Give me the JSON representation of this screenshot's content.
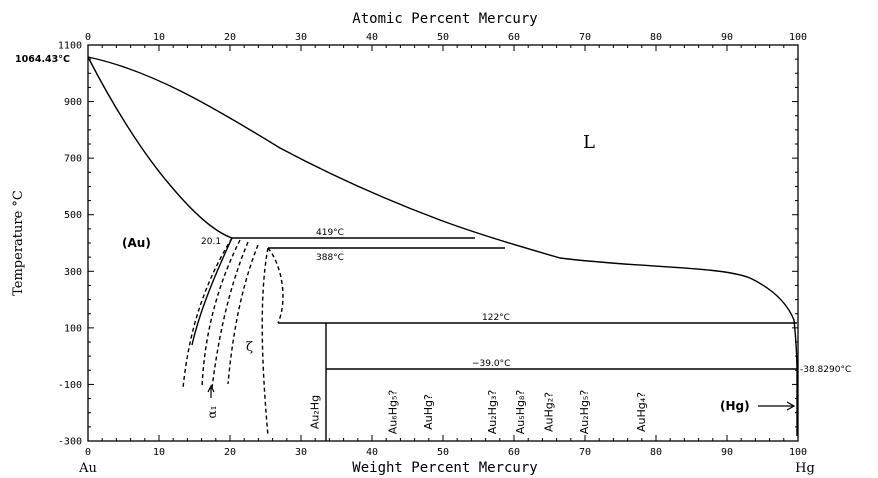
{
  "diagram": {
    "top_axis_label": "Atomic Percent Mercury",
    "bottom_axis_label": "Weight Percent Mercury",
    "y_axis_label": "Temperature °C",
    "left_element": "Au",
    "right_element": "Hg",
    "top_ticks": [
      "0",
      "10",
      "20",
      "30",
      "40",
      "50",
      "60",
      "70",
      "80",
      "90",
      "100"
    ],
    "bottom_ticks": [
      "0",
      "10",
      "20",
      "30",
      "40",
      "50",
      "60",
      "70",
      "80",
      "90",
      "100"
    ],
    "y_ticks": [
      "1100",
      "900",
      "700",
      "500",
      "300",
      "100",
      "-100",
      "-300"
    ],
    "temperatures": {
      "au_melt": "1064.43°C",
      "t419": "419°C",
      "t388": "388°C",
      "t122": "122°C",
      "tm39": "−39.0°C",
      "hg_melt": "-38.8290°C",
      "t20_1": "20.1"
    },
    "regions": {
      "liquid": "L",
      "au_solid": "(Au)",
      "hg_solid": "(Hg)",
      "zeta": "ζ",
      "alpha1": "α₁"
    },
    "compounds": [
      {
        "label": "Au₂Hg",
        "wt": 33
      },
      {
        "label": "Au₆Hg₅?",
        "wt": 44
      },
      {
        "label": "AuHg?",
        "wt": 49
      },
      {
        "label": "Au₂Hg₃?",
        "wt": 58
      },
      {
        "label": "Au₅Hg₈?",
        "wt": 62
      },
      {
        "label": "AuHg₂?",
        "wt": 66
      },
      {
        "label": "Au₂Hg₅?",
        "wt": 71
      },
      {
        "label": "AuHg₄?",
        "wt": 79
      }
    ]
  }
}
